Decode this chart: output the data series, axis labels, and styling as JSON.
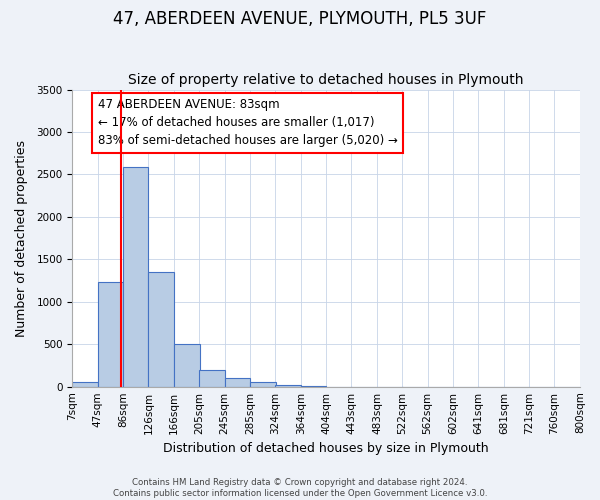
{
  "title": "47, ABERDEEN AVENUE, PLYMOUTH, PL5 3UF",
  "subtitle": "Size of property relative to detached houses in Plymouth",
  "xlabel": "Distribution of detached houses by size in Plymouth",
  "ylabel": "Number of detached properties",
  "footer_line1": "Contains HM Land Registry data © Crown copyright and database right 2024.",
  "footer_line2": "Contains public sector information licensed under the Open Government Licence v3.0.",
  "bin_labels": [
    "7sqm",
    "47sqm",
    "86sqm",
    "126sqm",
    "166sqm",
    "205sqm",
    "245sqm",
    "285sqm",
    "324sqm",
    "364sqm",
    "404sqm",
    "443sqm",
    "483sqm",
    "522sqm",
    "562sqm",
    "602sqm",
    "641sqm",
    "681sqm",
    "721sqm",
    "760sqm",
    "800sqm"
  ],
  "bin_edges": [
    7,
    47,
    86,
    126,
    166,
    205,
    245,
    285,
    324,
    364,
    404,
    443,
    483,
    522,
    562,
    602,
    641,
    681,
    721,
    760,
    800
  ],
  "bar_heights": [
    50,
    1230,
    2590,
    1350,
    500,
    200,
    105,
    50,
    20,
    5,
    2,
    0,
    0,
    0,
    0,
    0,
    0,
    0,
    0,
    0
  ],
  "bar_color": "#b8cce4",
  "bar_edge_color": "#4472c4",
  "property_line_x": 83,
  "property_line_color": "red",
  "ylim": [
    0,
    3500
  ],
  "yticks": [
    0,
    500,
    1000,
    1500,
    2000,
    2500,
    3000,
    3500
  ],
  "annotation_text": "47 ABERDEEN AVENUE: 83sqm\n← 17% of detached houses are smaller (1,017)\n83% of semi-detached houses are larger (5,020) →",
  "annotation_box_color": "white",
  "annotation_box_edge_color": "red",
  "background_color": "#eef2f8",
  "plot_background_color": "white",
  "title_fontsize": 12,
  "subtitle_fontsize": 10,
  "axis_label_fontsize": 9,
  "tick_fontsize": 7.5,
  "annotation_fontsize": 8.5
}
